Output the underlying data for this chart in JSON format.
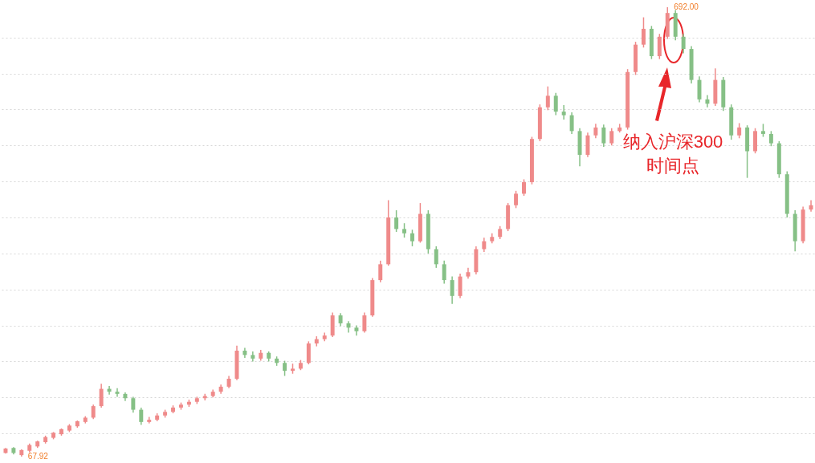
{
  "chart_data": {
    "type": "candlestick",
    "yticks": [
      {
        "value": 100,
        "label": null
      },
      {
        "value": 150,
        "label": null
      },
      {
        "value": 200,
        "label": null
      },
      {
        "value": 250,
        "label": null
      },
      {
        "value": 300,
        "label": null
      },
      {
        "value": 350,
        "label": null
      },
      {
        "value": 400,
        "label": null
      },
      {
        "value": 450,
        "label": null
      },
      {
        "value": 500,
        "label": null
      },
      {
        "value": 550,
        "label": null
      },
      {
        "value": 600,
        "label": null
      },
      {
        "value": 650,
        "label": null
      }
    ],
    "grid": "y",
    "categories": [
      null,
      null,
      null,
      null,
      null,
      null,
      null,
      null,
      null,
      null,
      null,
      null,
      null,
      null,
      null,
      null,
      null,
      null,
      null,
      null,
      null,
      null,
      null,
      null,
      null,
      null,
      null,
      null,
      null,
      null,
      null,
      null,
      null,
      null,
      null,
      null,
      null,
      null,
      null,
      null,
      null,
      null,
      null,
      null,
      null,
      null,
      null,
      null,
      null,
      null,
      null,
      null,
      null,
      null,
      null,
      null,
      null,
      null,
      null,
      null,
      null,
      null,
      null,
      null,
      null,
      null,
      null,
      null,
      null,
      null,
      null,
      null,
      null,
      null,
      null,
      null,
      null,
      null,
      null,
      null,
      null,
      null,
      null,
      null,
      null,
      null,
      null,
      null,
      null,
      null,
      null,
      null,
      null,
      null,
      null,
      null,
      null,
      null,
      null,
      null,
      null,
      null
    ],
    "ohlc": [
      [
        73,
        80,
        72,
        79
      ],
      [
        80,
        81,
        71,
        73
      ],
      [
        70,
        78,
        67.92,
        77
      ],
      [
        76,
        86,
        74,
        84
      ],
      [
        82,
        90,
        80,
        89
      ],
      [
        88,
        97,
        86,
        95
      ],
      [
        94,
        102,
        92,
        101
      ],
      [
        99,
        107,
        97,
        106
      ],
      [
        104,
        113,
        102,
        111
      ],
      [
        110,
        118,
        108,
        117
      ],
      [
        116,
        124,
        114,
        122
      ],
      [
        122,
        140,
        120,
        138
      ],
      [
        138,
        169,
        136,
        162
      ],
      [
        162,
        166,
        154,
        158
      ],
      [
        158,
        163,
        151,
        155
      ],
      [
        155,
        157,
        145,
        149
      ],
      [
        149,
        151,
        129,
        133
      ],
      [
        133,
        136,
        112,
        116
      ],
      [
        116,
        123,
        114,
        119
      ],
      [
        119,
        128,
        117,
        125
      ],
      [
        125,
        133,
        122,
        130
      ],
      [
        130,
        139,
        128,
        136
      ],
      [
        136,
        143,
        133,
        140
      ],
      [
        140,
        147,
        137,
        144
      ],
      [
        144,
        151,
        141,
        149
      ],
      [
        149,
        155,
        146,
        152
      ],
      [
        152,
        161,
        150,
        158
      ],
      [
        158,
        168,
        155,
        165
      ],
      [
        165,
        180,
        163,
        176
      ],
      [
        176,
        222,
        174,
        215
      ],
      [
        215,
        219,
        205,
        209
      ],
      [
        209,
        214,
        200,
        204
      ],
      [
        204,
        216,
        201,
        212
      ],
      [
        212,
        214,
        200,
        204
      ],
      [
        204,
        207,
        194,
        198
      ],
      [
        198,
        201,
        180,
        187
      ],
      [
        187,
        197,
        183,
        190
      ],
      [
        190,
        202,
        188,
        198
      ],
      [
        198,
        228,
        196,
        225
      ],
      [
        225,
        235,
        221,
        231
      ],
      [
        231,
        240,
        228,
        236
      ],
      [
        236,
        268,
        234,
        264
      ],
      [
        264,
        267,
        249,
        253
      ],
      [
        253,
        256,
        240,
        247
      ],
      [
        247,
        250,
        236,
        242
      ],
      [
        242,
        268,
        240,
        264
      ],
      [
        264,
        316,
        262,
        313
      ],
      [
        313,
        340,
        310,
        335
      ],
      [
        335,
        424,
        333,
        400
      ],
      [
        400,
        410,
        380,
        384
      ],
      [
        384,
        392,
        372,
        378
      ],
      [
        378,
        383,
        360,
        367
      ],
      [
        367,
        420,
        365,
        405
      ],
      [
        405,
        410,
        350,
        356
      ],
      [
        356,
        360,
        330,
        335
      ],
      [
        335,
        340,
        308,
        313
      ],
      [
        313,
        318,
        280,
        291
      ],
      [
        291,
        322,
        288,
        318
      ],
      [
        318,
        330,
        315,
        324
      ],
      [
        324,
        360,
        321,
        356
      ],
      [
        356,
        372,
        352,
        367
      ],
      [
        367,
        378,
        364,
        373
      ],
      [
        373,
        388,
        370,
        384
      ],
      [
        384,
        420,
        381,
        417
      ],
      [
        417,
        437,
        413,
        433
      ],
      [
        433,
        453,
        430,
        449
      ],
      [
        449,
        512,
        446,
        509
      ],
      [
        509,
        557,
        506,
        553
      ],
      [
        553,
        582,
        549,
        569
      ],
      [
        569,
        573,
        542,
        547
      ],
      [
        547,
        556,
        536,
        542
      ],
      [
        542,
        546,
        516,
        520
      ],
      [
        520,
        524,
        471,
        487
      ],
      [
        487,
        518,
        484,
        514
      ],
      [
        514,
        530,
        510,
        525
      ],
      [
        525,
        529,
        498,
        503
      ],
      [
        503,
        524,
        500,
        520
      ],
      [
        520,
        530,
        518,
        525
      ],
      [
        525,
        606,
        522,
        602
      ],
      [
        602,
        644,
        598,
        640
      ],
      [
        640,
        678,
        636,
        662
      ],
      [
        662,
        666,
        620,
        624
      ],
      [
        624,
        655,
        620,
        651
      ],
      [
        651,
        692,
        648,
        684
      ],
      [
        684,
        688,
        646,
        651
      ],
      [
        651,
        655,
        628,
        634
      ],
      [
        634,
        638,
        586,
        591
      ],
      [
        591,
        596,
        560,
        564
      ],
      [
        564,
        570,
        553,
        558
      ],
      [
        558,
        607,
        555,
        591
      ],
      [
        591,
        595,
        548,
        553
      ],
      [
        553,
        557,
        508,
        514
      ],
      [
        514,
        531,
        510,
        525
      ],
      [
        525,
        528,
        455,
        492
      ],
      [
        492,
        524,
        489,
        520
      ],
      [
        520,
        530,
        512,
        516
      ],
      [
        516,
        520,
        499,
        503
      ],
      [
        503,
        506,
        455,
        460
      ],
      [
        460,
        464,
        400,
        405
      ],
      [
        405,
        410,
        353,
        367
      ],
      [
        367,
        415,
        364,
        411
      ],
      [
        411,
        424,
        408,
        417
      ]
    ],
    "annotations": [
      "692.00",
      "67.92",
      "纳入沪深300\n时间点"
    ]
  }
}
